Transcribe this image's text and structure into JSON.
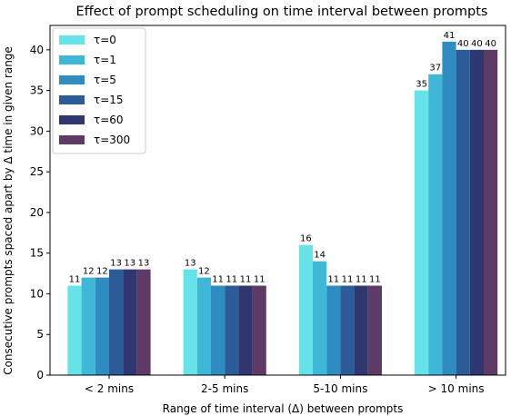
{
  "chart_data": {
    "type": "bar",
    "title": "Effect of prompt scheduling on time interval between prompts",
    "xlabel": "Range of time interval (Δ) between prompts",
    "ylabel": "Consecutive prompts spaced apart by Δ time in given range",
    "categories": [
      "< 2 mins",
      "2-5 mins",
      "5-10 mins",
      "> 10 mins"
    ],
    "ylim": [
      0,
      43
    ],
    "yticks": [
      0,
      5,
      10,
      15,
      20,
      25,
      30,
      35,
      40
    ],
    "legend_position": "top-left",
    "grid": false,
    "series": [
      {
        "name": "τ=0",
        "color": "#66E3E8",
        "values": [
          11,
          13,
          16,
          35
        ]
      },
      {
        "name": "τ=1",
        "color": "#3FB8D8",
        "values": [
          12,
          12,
          14,
          37
        ]
      },
      {
        "name": "τ=5",
        "color": "#2E8CC0",
        "values": [
          12,
          11,
          11,
          41
        ]
      },
      {
        "name": "τ=15",
        "color": "#2C5C98",
        "values": [
          13,
          11,
          11,
          40
        ]
      },
      {
        "name": "τ=60",
        "color": "#2E3770",
        "values": [
          13,
          11,
          11,
          40
        ]
      },
      {
        "name": "τ=300",
        "color": "#5E3A66",
        "values": [
          13,
          11,
          11,
          40
        ]
      }
    ]
  }
}
